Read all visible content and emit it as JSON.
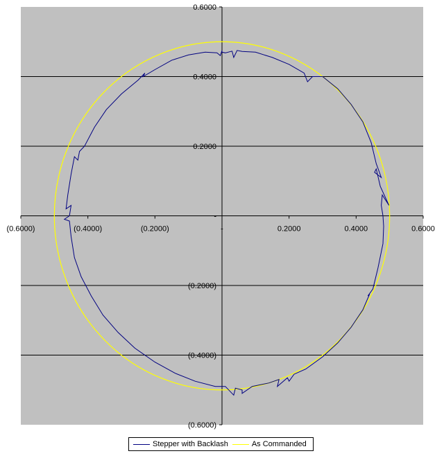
{
  "chart_data": {
    "type": "scatter",
    "title": "",
    "xlabel": "",
    "ylabel": "",
    "xlim": [
      -0.6,
      0.6
    ],
    "ylim": [
      -0.6,
      0.6
    ],
    "grid": true,
    "legend_position": "bottom",
    "colors": {
      "plot_background": "#c0c0c0",
      "gridline": "#000000",
      "stepper": "#000080",
      "commanded": "#ffff00"
    },
    "x_tick_labels": [
      "(0.6000)",
      "(0.4000)",
      "(0.2000)",
      "-",
      "0.2000",
      "0.4000",
      "0.6000"
    ],
    "y_tick_labels": [
      "0.6000",
      "0.4000",
      "0.2000",
      "-",
      "(0.2000)",
      "(0.4000)",
      "(0.6000)"
    ],
    "x_ticks": [
      -0.6,
      -0.4,
      -0.2,
      0,
      0.2,
      0.4,
      0.6
    ],
    "y_ticks": [
      0.6,
      0.4,
      0.2,
      0,
      -0.2,
      -0.4,
      -0.6
    ],
    "series": [
      {
        "name": "Stepper with Backlash",
        "color": "#000080",
        "points": [
          [
            0.48,
            0.0
          ],
          [
            0.475,
            0.03
          ],
          [
            0.478,
            0.06
          ],
          [
            0.498,
            0.03
          ],
          [
            0.472,
            0.085
          ],
          [
            0.46,
            0.135
          ],
          [
            0.455,
            0.125
          ],
          [
            0.475,
            0.11
          ],
          [
            0.46,
            0.15
          ],
          [
            0.445,
            0.21
          ],
          [
            0.42,
            0.27
          ],
          [
            0.385,
            0.32
          ],
          [
            0.345,
            0.365
          ],
          [
            0.3,
            0.4
          ],
          [
            0.27,
            0.4
          ],
          [
            0.255,
            0.385
          ],
          [
            0.245,
            0.41
          ],
          [
            0.2,
            0.435
          ],
          [
            0.15,
            0.455
          ],
          [
            0.1,
            0.47
          ],
          [
            0.06,
            0.472
          ],
          [
            0.045,
            0.475
          ],
          [
            0.035,
            0.455
          ],
          [
            0.03,
            0.473
          ],
          [
            0.01,
            0.468
          ],
          [
            0.0,
            0.47
          ],
          [
            0.0,
            0.475
          ],
          [
            -0.005,
            0.46
          ],
          [
            -0.015,
            0.468
          ],
          [
            -0.05,
            0.47
          ],
          [
            -0.1,
            0.462
          ],
          [
            -0.15,
            0.447
          ],
          [
            -0.2,
            0.42
          ],
          [
            -0.235,
            0.4
          ],
          [
            -0.23,
            0.41
          ],
          [
            -0.25,
            0.39
          ],
          [
            -0.3,
            0.35
          ],
          [
            -0.345,
            0.305
          ],
          [
            -0.38,
            0.255
          ],
          [
            -0.41,
            0.2
          ],
          [
            -0.425,
            0.185
          ],
          [
            -0.43,
            0.16
          ],
          [
            -0.44,
            0.17
          ],
          [
            -0.45,
            0.12
          ],
          [
            -0.46,
            0.06
          ],
          [
            -0.465,
            0.02
          ],
          [
            -0.45,
            0.03
          ],
          [
            -0.455,
            0.0
          ],
          [
            -0.47,
            -0.01
          ],
          [
            -0.455,
            -0.015
          ],
          [
            -0.45,
            -0.06
          ],
          [
            -0.44,
            -0.12
          ],
          [
            -0.42,
            -0.175
          ],
          [
            -0.39,
            -0.23
          ],
          [
            -0.355,
            -0.285
          ],
          [
            -0.31,
            -0.335
          ],
          [
            -0.26,
            -0.38
          ],
          [
            -0.2,
            -0.42
          ],
          [
            -0.14,
            -0.452
          ],
          [
            -0.08,
            -0.475
          ],
          [
            -0.02,
            -0.49
          ],
          [
            0.01,
            -0.49
          ],
          [
            0.035,
            -0.515
          ],
          [
            0.04,
            -0.495
          ],
          [
            0.06,
            -0.5
          ],
          [
            0.06,
            -0.51
          ],
          [
            0.09,
            -0.49
          ],
          [
            0.14,
            -0.48
          ],
          [
            0.17,
            -0.47
          ],
          [
            0.165,
            -0.49
          ],
          [
            0.195,
            -0.465
          ],
          [
            0.2,
            -0.475
          ],
          [
            0.215,
            -0.455
          ],
          [
            0.25,
            -0.44
          ],
          [
            0.3,
            -0.405
          ],
          [
            0.345,
            -0.365
          ],
          [
            0.385,
            -0.32
          ],
          [
            0.42,
            -0.27
          ],
          [
            0.44,
            -0.225
          ],
          [
            0.435,
            -0.23
          ],
          [
            0.45,
            -0.21
          ],
          [
            0.465,
            -0.15
          ],
          [
            0.48,
            -0.08
          ],
          [
            0.482,
            -0.03
          ],
          [
            0.48,
            0.0
          ]
        ]
      },
      {
        "name": "As Commanded",
        "color": "#ffff00",
        "shape": "circle",
        "radius": 0.5
      }
    ]
  }
}
